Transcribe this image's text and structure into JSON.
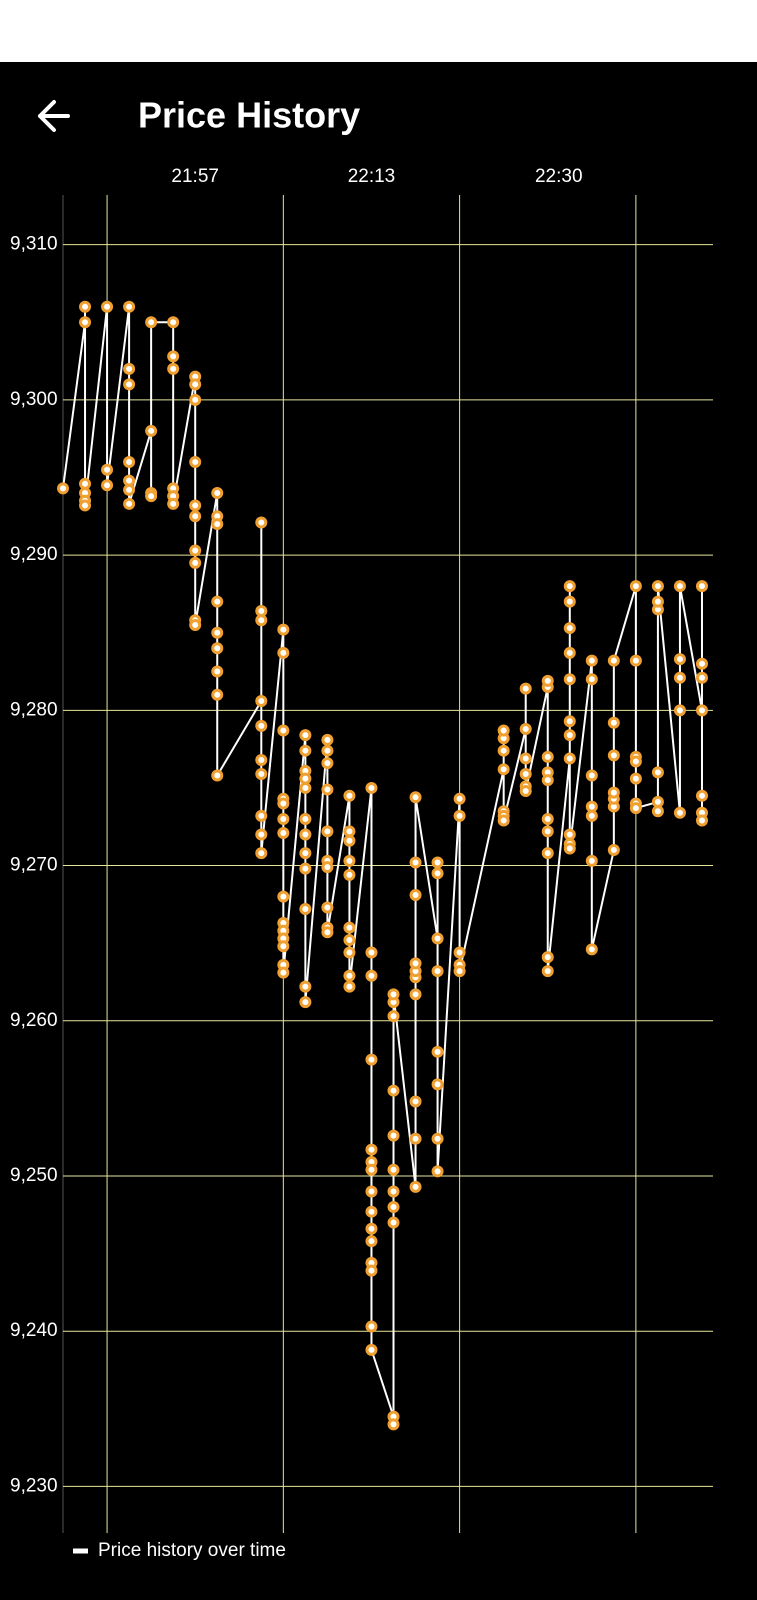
{
  "header": {
    "title": "Price History"
  },
  "chart_data": {
    "type": "line",
    "series": [
      {
        "name": "Price history over time",
        "color": "#ffffff",
        "marker_color": "#f0a030",
        "x": [
          1305,
          1307,
          1307,
          1307,
          1307,
          1307,
          1307,
          1309,
          1309,
          1309,
          1311,
          1311,
          1311,
          1311,
          1311,
          1311,
          1311,
          1313,
          1313,
          1313,
          1313,
          1315,
          1315,
          1315,
          1315,
          1315,
          1315,
          1317,
          1317,
          1317,
          1317,
          1317,
          1317,
          1317,
          1317,
          1317,
          1317,
          1319,
          1319,
          1319,
          1319,
          1319,
          1319,
          1319,
          1319,
          1319,
          1323,
          1323,
          1323,
          1323,
          1323,
          1323,
          1323,
          1323,
          1323,
          1323,
          1325,
          1325,
          1325,
          1325,
          1325,
          1325,
          1325,
          1325,
          1325,
          1325,
          1325,
          1325,
          1325,
          1325,
          1327,
          1327,
          1327,
          1327,
          1327,
          1327,
          1327,
          1327,
          1327,
          1327,
          1327,
          1327,
          1329,
          1329,
          1329,
          1329,
          1329,
          1329,
          1329,
          1329,
          1329,
          1329,
          1331,
          1331,
          1331,
          1331,
          1331,
          1331,
          1331,
          1331,
          1331,
          1331,
          1333,
          1333,
          1333,
          1333,
          1333,
          1333,
          1333,
          1333,
          1333,
          1333,
          1333,
          1333,
          1333,
          1333,
          1333,
          1335,
          1335,
          1335,
          1335,
          1335,
          1335,
          1335,
          1335,
          1335,
          1335,
          1335,
          1337,
          1337,
          1337,
          1337,
          1337,
          1337,
          1337,
          1337,
          1337,
          1337,
          1339,
          1339,
          1339,
          1339,
          1339,
          1339,
          1339,
          1339,
          1341,
          1341,
          1341,
          1341,
          1341,
          1345,
          1345,
          1345,
          1345,
          1345,
          1345,
          1345,
          1347,
          1347,
          1347,
          1347,
          1347,
          1347,
          1349,
          1349,
          1349,
          1349,
          1349,
          1349,
          1349,
          1349,
          1349,
          1349,
          1351,
          1351,
          1351,
          1351,
          1351,
          1351,
          1351,
          1351,
          1351,
          1351,
          1351,
          1353,
          1353,
          1353,
          1353,
          1353,
          1353,
          1353,
          1355,
          1355,
          1355,
          1355,
          1355,
          1355,
          1355,
          1357,
          1357,
          1357,
          1357,
          1357,
          1357,
          1357,
          1359,
          1359,
          1359,
          1359,
          1359,
          1359,
          1361,
          1361,
          1361,
          1361,
          1361,
          1363,
          1363,
          1363,
          1363,
          1363,
          1363,
          1363
        ],
        "values": [
          9294.3,
          9305,
          9306,
          9294.6,
          9294,
          9293.5,
          9293.2,
          9306,
          9295.5,
          9294.5,
          9306,
          9302,
          9301,
          9296,
          9294.8,
          9294.2,
          9293.3,
          9298,
          9294,
          9293.8,
          9305,
          9305,
          9302.8,
          9302,
          9294.3,
          9293.8,
          9293.3,
          9301.5,
          9301,
          9300,
          9296,
          9293.2,
          9292.5,
          9290.3,
          9289.5,
          9285.8,
          9285.5,
          9294,
          9292.5,
          9292,
          9287,
          9285,
          9284,
          9282.5,
          9281,
          9275.8,
          9280.6,
          9292.1,
          9286.4,
          9285.8,
          9279,
          9276.8,
          9275.9,
          9273.2,
          9272,
          9270.8,
          9285.2,
          9283.7,
          9278.7,
          9274.3,
          9274,
          9273,
          9272.1,
          9268,
          9266.3,
          9265.8,
          9265.3,
          9264.8,
          9263.6,
          9263.1,
          9278.4,
          9277.4,
          9276.1,
          9275.6,
          9275,
          9273,
          9272,
          9270.8,
          9269.8,
          9267.2,
          9262.2,
          9261.2,
          9278.1,
          9277.4,
          9276.6,
          9274.9,
          9272.2,
          9270.3,
          9269.9,
          9267.3,
          9266,
          9265.7,
          9274.5,
          9272.2,
          9271.6,
          9270.3,
          9269.4,
          9266,
          9265.2,
          9264.4,
          9262.9,
          9262.2,
          9275,
          9264.4,
          9262.9,
          9257.5,
          9251.7,
          9250.9,
          9250.4,
          9249,
          9247.7,
          9246.6,
          9245.8,
          9244.4,
          9243.9,
          9240.3,
          9238.8,
          9234.5,
          9234,
          9247,
          9248,
          9249,
          9250.4,
          9252.6,
          9255.5,
          9260.3,
          9261.2,
          9261.7,
          9249.3,
          9252.4,
          9254.8,
          9261.7,
          9262.8,
          9263.2,
          9263.7,
          9268.1,
          9270.2,
          9274.4,
          9265.3,
          9270.2,
          9269.5,
          9263.2,
          9258,
          9255.9,
          9252.4,
          9250.3,
          9274.3,
          9273.2,
          9264.4,
          9263.6,
          9263.2,
          9276.2,
          9277.4,
          9278.2,
          9278.7,
          9273.5,
          9273.2,
          9272.9,
          9278.8,
          9281.4,
          9276.9,
          9275.9,
          9275.1,
          9274.8,
          9281.5,
          9281.9,
          9277,
          9276,
          9275.5,
          9273,
          9272.2,
          9270.8,
          9264.1,
          9263.2,
          9276.9,
          9288,
          9287,
          9285.3,
          9283.7,
          9282,
          9279.3,
          9278.4,
          9272,
          9271.4,
          9271.1,
          9283.2,
          9282,
          9275.8,
          9273.8,
          9273.2,
          9270.3,
          9264.6,
          9271,
          9273.8,
          9274.3,
          9274.7,
          9277.1,
          9279.2,
          9283.2,
          9288,
          9283.2,
          9277,
          9276.7,
          9275.6,
          9274,
          9273.7,
          9274.1,
          9273.5,
          9276,
          9286.5,
          9287,
          9288,
          9273.4,
          9280,
          9282.1,
          9283.3,
          9288,
          9280,
          9288,
          9283,
          9282.1,
          9274.5,
          9273.4,
          9272.9
        ]
      }
    ],
    "xlim": [
      1305,
      1364
    ],
    "xticks": [
      {
        "value": 1317,
        "label": "21:57"
      },
      {
        "value": 1333,
        "label": "22:13"
      },
      {
        "value": 1350,
        "label": "22:30"
      }
    ],
    "xgrid": [
      1309,
      1325,
      1341,
      1357
    ],
    "ylim": [
      9227,
      9313.2
    ],
    "yticks": [
      {
        "value": 9230,
        "label": "9,230"
      },
      {
        "value": 9240,
        "label": "9,240"
      },
      {
        "value": 9250,
        "label": "9,250"
      },
      {
        "value": 9260,
        "label": "9,260"
      },
      {
        "value": 9270,
        "label": "9,270"
      },
      {
        "value": 9280,
        "label": "9,280"
      },
      {
        "value": 9290,
        "label": "9,290"
      },
      {
        "value": 9300,
        "label": "9,300"
      },
      {
        "value": 9310,
        "label": "9,310"
      }
    ],
    "grid": true,
    "grid_color": "#e6e69a",
    "legend": "bottom-left"
  }
}
